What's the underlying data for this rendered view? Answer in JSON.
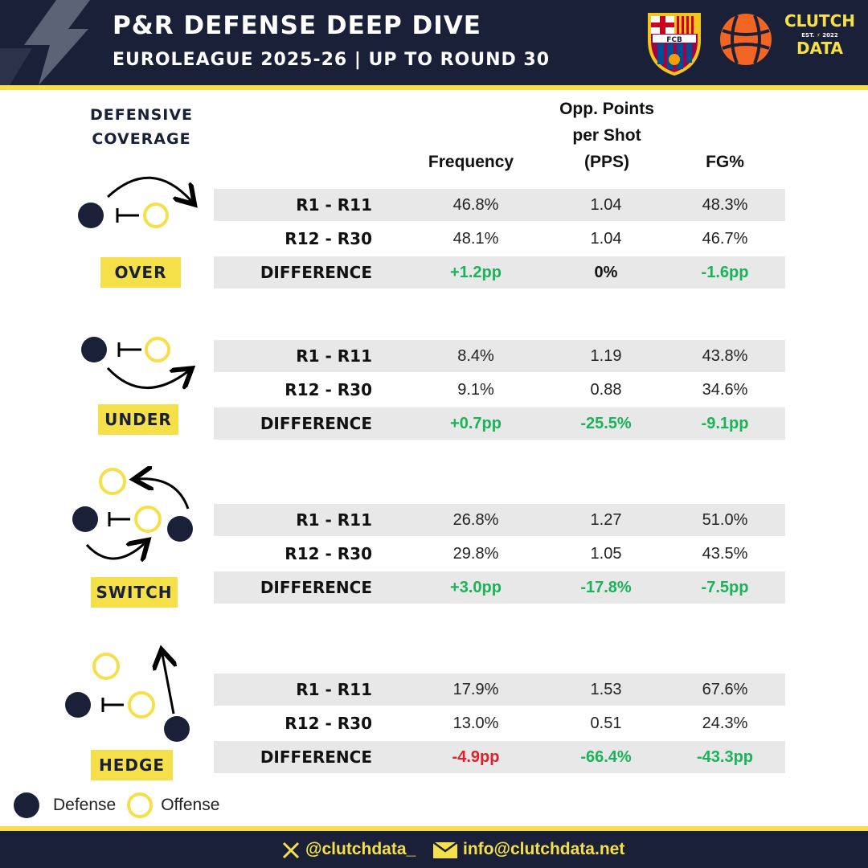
{
  "header": {
    "title": "P&R DEFENSE DEEP DIVE",
    "subtitle": "EUROLEAGUE 2025-26 | UP TO ROUND 30",
    "team_logo": "fc-barcelona-crest",
    "team_logo_text": "FCB",
    "league_logo": "euroleague-logo",
    "brand": {
      "line1": "CLUTCH",
      "est": "EST.",
      "year": "2022",
      "line2": "DATA"
    }
  },
  "table": {
    "coverage_heading_1": "DEFENSIVE",
    "coverage_heading_2": "COVERAGE",
    "col_frequency": "Frequency",
    "col_pps_1": "Opp. Points",
    "col_pps_2": "per Shot",
    "col_pps_3": "(PPS)",
    "col_fg": "FG%",
    "groups": [
      {
        "tag": "OVER",
        "rows": [
          {
            "label": "R1 - R11",
            "frequency": "46.8%",
            "pps": "1.04",
            "fg": "48.3%"
          },
          {
            "label": "R12 - R30",
            "frequency": "48.1%",
            "pps": "1.04",
            "fg": "46.7%"
          },
          {
            "label": "DIFFERENCE",
            "frequency": "+1.2pp",
            "pps": "0%",
            "fg": "-1.6pp"
          }
        ]
      },
      {
        "tag": "UNDER",
        "rows": [
          {
            "label": "R1 - R11",
            "frequency": "8.4%",
            "pps": "1.19",
            "fg": "43.8%"
          },
          {
            "label": "R12 - R30",
            "frequency": "9.1%",
            "pps": "0.88",
            "fg": "34.6%"
          },
          {
            "label": "DIFFERENCE",
            "frequency": "+0.7pp",
            "pps": "-25.5%",
            "fg": "-9.1pp"
          }
        ]
      },
      {
        "tag": "SWITCH",
        "rows": [
          {
            "label": "R1 - R11",
            "frequency": "26.8%",
            "pps": "1.27",
            "fg": "51.0%"
          },
          {
            "label": "R12 - R30",
            "frequency": "29.8%",
            "pps": "1.05",
            "fg": "43.5%"
          },
          {
            "label": "DIFFERENCE",
            "frequency": "+3.0pp",
            "pps": "-17.8%",
            "fg": "-7.5pp"
          }
        ]
      },
      {
        "tag": "HEDGE",
        "rows": [
          {
            "label": "R1 - R11",
            "frequency": "17.9%",
            "pps": "1.53",
            "fg": "67.6%"
          },
          {
            "label": "R12 - R30",
            "frequency": "13.0%",
            "pps": "0.51",
            "fg": "24.3%"
          },
          {
            "label": "DIFFERENCE",
            "frequency": "-4.9pp",
            "pps": "-66.4%",
            "fg": "-43.3pp"
          }
        ]
      }
    ]
  },
  "legend": {
    "defense": "Defense",
    "offense": "Offense"
  },
  "footer": {
    "twitter_icon": "x-logo-icon",
    "twitter": "@clutchdata_",
    "mail_icon": "envelope-icon",
    "email": "info@clutchdata.net"
  },
  "colors": {
    "navy": "#1a2037",
    "yellow": "#f5e04a",
    "positive": "#1bb35a",
    "negative": "#e0202a",
    "row_shade": "#e8e8e8"
  }
}
